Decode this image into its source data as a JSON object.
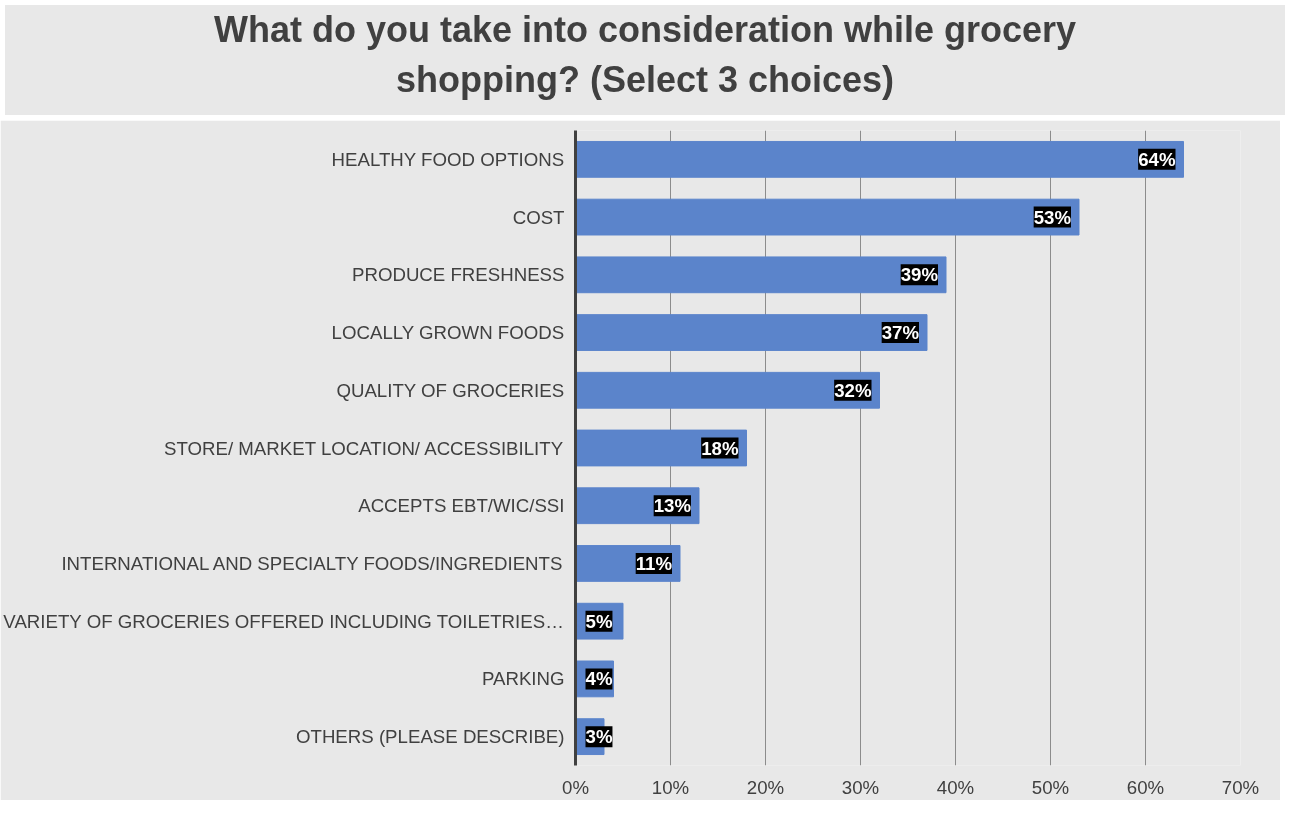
{
  "chart_data": {
    "type": "bar",
    "orientation": "horizontal",
    "title": "What do you take into consideration while grocery shopping? (Select 3 choices)",
    "categories": [
      "HEALTHY FOOD OPTIONS",
      "COST",
      "PRODUCE FRESHNESS",
      "LOCALLY GROWN FOODS",
      "QUALITY OF GROCERIES",
      "STORE/ MARKET LOCATION/ ACCESSIBILITY",
      "ACCEPTS EBT/WIC/SSI",
      "INTERNATIONAL AND SPECIALTY FOODS/INGREDIENTS",
      "VARIETY OF GROCERIES OFFERED INCLUDING TOILETRIES…",
      "PARKING",
      "OTHERS (PLEASE DESCRIBE)"
    ],
    "values": [
      64,
      53,
      39,
      37,
      32,
      18,
      13,
      11,
      5,
      4,
      3
    ],
    "value_labels": [
      "64%",
      "53%",
      "39%",
      "37%",
      "32%",
      "18%",
      "13%",
      "11%",
      "5%",
      "4%",
      "3%"
    ],
    "color": "#5b84cb",
    "xlim": [
      0,
      70
    ],
    "xticks": [
      {
        "value": 0,
        "label": "0%"
      },
      {
        "value": 10,
        "label": "10%"
      },
      {
        "value": 20,
        "label": "20%"
      },
      {
        "value": 30,
        "label": "30%"
      },
      {
        "value": 40,
        "label": "40%"
      },
      {
        "value": 50,
        "label": "50%"
      },
      {
        "value": 60,
        "label": "60%"
      },
      {
        "value": 70,
        "label": "70%"
      }
    ],
    "grid": "x",
    "legend": false
  }
}
